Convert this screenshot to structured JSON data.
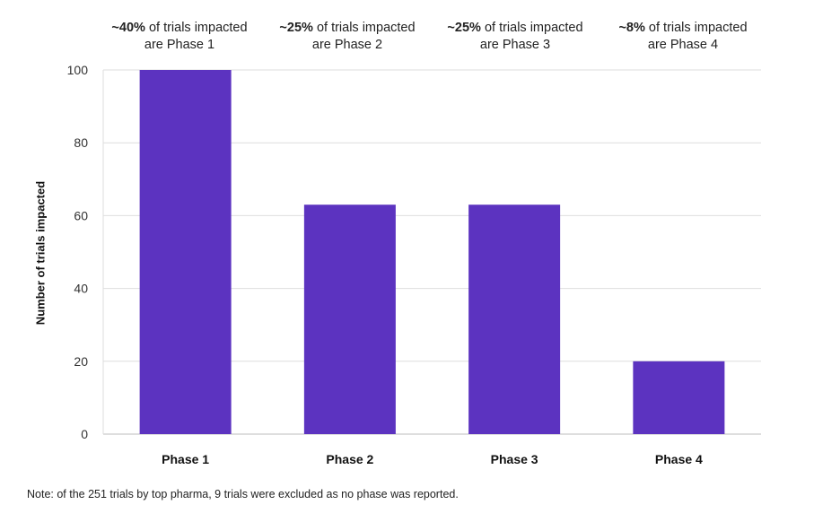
{
  "chart_data": {
    "type": "bar",
    "categories": [
      "Phase 1",
      "Phase 2",
      "Phase 3",
      "Phase 4"
    ],
    "values": [
      100,
      63,
      63,
      20
    ],
    "ylabel": "Number of trials impacted",
    "xlabel": "",
    "ylim": [
      0,
      100
    ],
    "yticks": [
      "0",
      "20",
      "40",
      "60",
      "80",
      "100"
    ],
    "grid": true,
    "bar_color": "#5c33c0",
    "annotations": [
      {
        "bold": "~40%",
        "rest": " of trials impacted",
        "line2": "are Phase 1"
      },
      {
        "bold": "~25%",
        "rest": " of trials impacted",
        "line2": "are Phase 2"
      },
      {
        "bold": "~25%",
        "rest": " of trials impacted",
        "line2": "are Phase 3"
      },
      {
        "bold": "~8%",
        "rest": " of trials impacted",
        "line2": "are Phase 4"
      }
    ]
  },
  "note": "Note: of the 251 trials by top pharma, 9 trials were excluded as no phase was reported."
}
